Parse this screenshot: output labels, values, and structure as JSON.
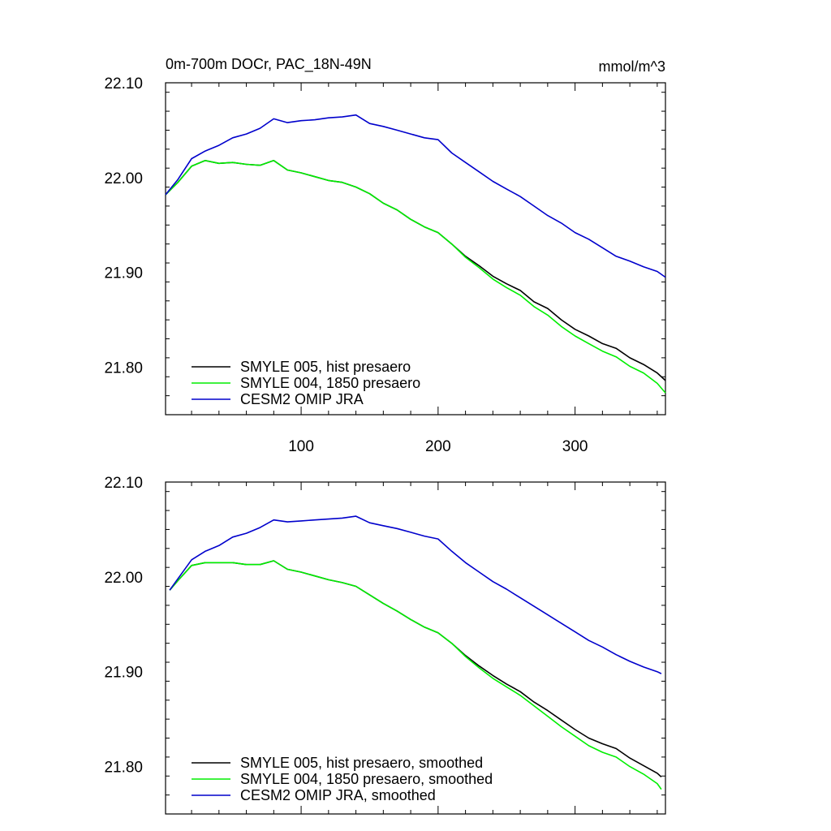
{
  "chart_data": [
    {
      "type": "line",
      "title_left": "0m-700m DOCr, PAC_18N-49N",
      "title_right": "mmol/m^3",
      "xlim": [
        1,
        366
      ],
      "ylim": [
        21.75,
        22.1
      ],
      "x_ticks": [
        100,
        200,
        300
      ],
      "x_tick_labels": [
        "100",
        "200",
        "300"
      ],
      "y_ticks": [
        21.8,
        21.9,
        22.0,
        22.1
      ],
      "y_tick_labels": [
        "21.80",
        "21.90",
        "22.00",
        "22.10"
      ],
      "legend_position": "bottom-left",
      "series": [
        {
          "name": "SMYLE 005, hist presaero",
          "color": "#000000",
          "x": [
            1,
            10,
            20,
            30,
            40,
            50,
            60,
            70,
            80,
            90,
            100,
            110,
            120,
            130,
            140,
            150,
            160,
            170,
            180,
            190,
            200,
            210,
            220,
            230,
            240,
            250,
            260,
            270,
            280,
            290,
            300,
            310,
            320,
            330,
            340,
            350,
            360,
            366
          ],
          "y": [
            21.982,
            21.995,
            22.012,
            22.018,
            22.015,
            22.016,
            22.014,
            22.013,
            22.018,
            22.008,
            22.005,
            22.001,
            21.997,
            21.995,
            21.99,
            21.983,
            21.973,
            21.966,
            21.956,
            21.948,
            21.942,
            21.93,
            21.917,
            21.907,
            21.896,
            21.888,
            21.881,
            21.869,
            21.862,
            21.85,
            21.84,
            21.833,
            21.825,
            21.82,
            21.81,
            21.803,
            21.794,
            21.786
          ]
        },
        {
          "name": "SMYLE 004, 1850 presaero",
          "color": "#00ee00",
          "x": [
            1,
            10,
            20,
            30,
            40,
            50,
            60,
            70,
            80,
            90,
            100,
            110,
            120,
            130,
            140,
            150,
            160,
            170,
            180,
            190,
            200,
            210,
            220,
            230,
            240,
            250,
            260,
            270,
            280,
            290,
            300,
            310,
            320,
            330,
            340,
            350,
            360,
            366
          ],
          "y": [
            21.982,
            21.995,
            22.012,
            22.018,
            22.015,
            22.016,
            22.014,
            22.013,
            22.018,
            22.008,
            22.005,
            22.001,
            21.997,
            21.995,
            21.99,
            21.983,
            21.973,
            21.966,
            21.956,
            21.948,
            21.942,
            21.93,
            21.916,
            21.905,
            21.893,
            21.884,
            21.876,
            21.864,
            21.855,
            21.843,
            21.833,
            21.825,
            21.817,
            21.811,
            21.801,
            21.794,
            21.783,
            21.773
          ]
        },
        {
          "name": "CESM2 OMIP JRA",
          "color": "#0000cc",
          "x": [
            1,
            10,
            20,
            30,
            40,
            50,
            60,
            70,
            80,
            90,
            100,
            110,
            120,
            130,
            140,
            150,
            160,
            170,
            180,
            190,
            200,
            210,
            220,
            230,
            240,
            250,
            260,
            270,
            280,
            290,
            300,
            310,
            320,
            330,
            340,
            350,
            360,
            366
          ],
          "y": [
            21.982,
            21.998,
            22.02,
            22.028,
            22.034,
            22.042,
            22.046,
            22.052,
            22.062,
            22.058,
            22.06,
            22.061,
            22.063,
            22.064,
            22.066,
            22.057,
            22.054,
            22.05,
            22.046,
            22.042,
            22.04,
            22.026,
            22.016,
            22.006,
            21.996,
            21.988,
            21.98,
            21.97,
            21.96,
            21.952,
            21.942,
            21.935,
            21.926,
            21.917,
            21.912,
            21.906,
            21.901,
            21.895
          ]
        }
      ]
    },
    {
      "type": "line",
      "xlim": [
        1,
        366
      ],
      "ylim": [
        21.75,
        22.1
      ],
      "x_ticks": [
        100,
        200,
        300
      ],
      "x_tick_labels": [],
      "y_ticks": [
        21.8,
        21.9,
        22.0,
        22.1
      ],
      "y_tick_labels": [
        "21.80",
        "21.90",
        "22.00",
        "22.10"
      ],
      "legend_position": "bottom-left",
      "series": [
        {
          "name": "SMYLE 005, hist presaero, smoothed",
          "color": "#000000",
          "x": [
            4,
            10,
            20,
            30,
            40,
            50,
            60,
            70,
            80,
            90,
            100,
            110,
            120,
            130,
            140,
            150,
            160,
            170,
            180,
            190,
            200,
            210,
            220,
            230,
            240,
            250,
            260,
            270,
            280,
            290,
            300,
            310,
            320,
            330,
            340,
            350,
            360,
            363
          ],
          "y": [
            21.986,
            21.996,
            22.012,
            22.015,
            22.015,
            22.015,
            22.013,
            22.013,
            22.017,
            22.008,
            22.005,
            22.001,
            21.997,
            21.994,
            21.99,
            21.981,
            21.972,
            21.964,
            21.955,
            21.947,
            21.941,
            21.93,
            21.917,
            21.906,
            21.896,
            21.887,
            21.879,
            21.868,
            21.859,
            21.849,
            21.839,
            21.83,
            21.824,
            21.819,
            21.809,
            21.801,
            21.793,
            21.789
          ]
        },
        {
          "name": "SMYLE 004, 1850 presaero, smoothed",
          "color": "#00ee00",
          "x": [
            4,
            10,
            20,
            30,
            40,
            50,
            60,
            70,
            80,
            90,
            100,
            110,
            120,
            130,
            140,
            150,
            160,
            170,
            180,
            190,
            200,
            210,
            220,
            230,
            240,
            250,
            260,
            270,
            280,
            290,
            300,
            310,
            320,
            330,
            340,
            350,
            360,
            363
          ],
          "y": [
            21.986,
            21.996,
            22.012,
            22.015,
            22.015,
            22.015,
            22.013,
            22.013,
            22.017,
            22.008,
            22.005,
            22.001,
            21.997,
            21.994,
            21.99,
            21.981,
            21.972,
            21.964,
            21.955,
            21.947,
            21.941,
            21.93,
            21.916,
            21.904,
            21.893,
            21.884,
            21.875,
            21.864,
            21.853,
            21.842,
            21.832,
            21.822,
            21.815,
            21.81,
            21.8,
            21.792,
            21.782,
            21.776
          ]
        },
        {
          "name": "CESM2 OMIP JRA, smoothed",
          "color": "#0000cc",
          "x": [
            4,
            10,
            20,
            30,
            40,
            50,
            60,
            70,
            80,
            90,
            100,
            110,
            120,
            130,
            140,
            150,
            160,
            170,
            180,
            190,
            200,
            210,
            220,
            230,
            240,
            250,
            260,
            270,
            280,
            290,
            300,
            310,
            320,
            330,
            340,
            350,
            360,
            363
          ],
          "y": [
            21.986,
            21.998,
            22.018,
            22.027,
            22.033,
            22.042,
            22.046,
            22.052,
            22.06,
            22.058,
            22.059,
            22.06,
            22.061,
            22.062,
            22.064,
            22.057,
            22.054,
            22.051,
            22.047,
            22.043,
            22.04,
            22.027,
            22.015,
            22.005,
            21.995,
            21.987,
            21.978,
            21.969,
            21.96,
            21.951,
            21.942,
            21.933,
            21.926,
            21.918,
            21.911,
            21.905,
            21.9,
            21.898
          ]
        }
      ]
    }
  ]
}
